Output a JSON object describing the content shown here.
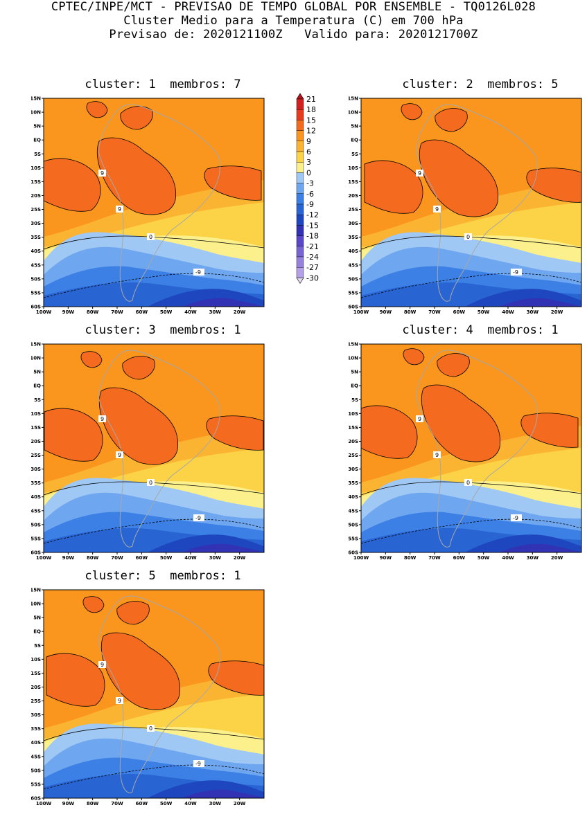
{
  "header": {
    "line1": "CPTEC/INPE/MCT - PREVISAO DE TEMPO GLOBAL POR ENSEMBLE - TQ0126L028",
    "line2": "Cluster Medio para a Temperatura (C) em 700 hPa",
    "line3": "Previsao de: 2020121100Z   Valido para: 2020121700Z"
  },
  "panels": [
    {
      "title": "cluster: 1  membros: 7"
    },
    {
      "title": "cluster: 2  membros: 5"
    },
    {
      "title": "cluster: 3  membros: 1"
    },
    {
      "title": "cluster: 4  membros: 1"
    },
    {
      "title": "cluster: 5  membros: 1"
    }
  ],
  "axes": {
    "lat_labels": [
      "15N",
      "10N",
      "5N",
      "EQ",
      "5S",
      "10S",
      "15S",
      "20S",
      "25S",
      "30S",
      "35S",
      "40S",
      "45S",
      "50S",
      "55S",
      "60S"
    ],
    "lon_labels": [
      "100W",
      "90W",
      "80W",
      "70W",
      "60W",
      "50W",
      "40W",
      "30W",
      "20W"
    ]
  },
  "legend": {
    "levels": [
      "21",
      "18",
      "15",
      "12",
      "9",
      "6",
      "3",
      "0",
      "-3",
      "-6",
      "-9",
      "-12",
      "-15",
      "-18",
      "-21",
      "-24",
      "-27",
      "-30"
    ],
    "colors": [
      "#b4141e",
      "#d02020",
      "#e63c1e",
      "#f46a1e",
      "#fa961e",
      "#fbb432",
      "#fcd246",
      "#fbf08c",
      "#a0c8f5",
      "#6ea6f0",
      "#3c80e6",
      "#2864d2",
      "#1e46be",
      "#3232b4",
      "#5a46c8",
      "#7864d2",
      "#9682dc",
      "#b4a0e6",
      "#e6dcf5"
    ]
  },
  "contour_labels": {
    "nine": "9",
    "zero": "0",
    "minus_nine": "-9"
  }
}
